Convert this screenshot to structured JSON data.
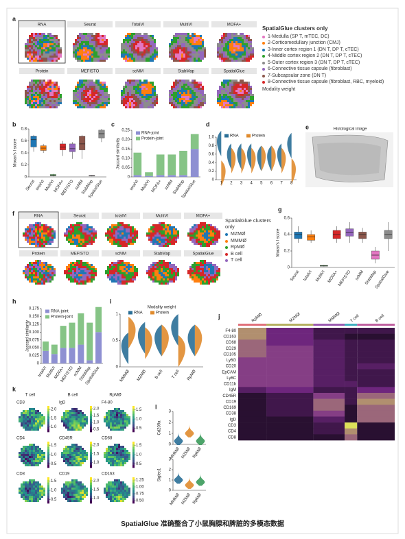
{
  "caption": "SpatialGlue 准确整合了小鼠胸腺和脾脏的多模态数据",
  "panels": {
    "a": {
      "label": "a",
      "maps": [
        "RNA",
        "Seurat",
        "TotalVI",
        "MultiVI",
        "MOFA+",
        "Protein",
        "MEFISTO",
        "scMM",
        "StabMap",
        "SpatialGlue"
      ],
      "legend_title": "SpatialGlue clusters only",
      "legend": [
        {
          "name": "1-Medulla (SP T, mTEC, DC)",
          "color": "#e377c2"
        },
        {
          "name": "2-Corticomedullary junction (CMJ)",
          "color": "#ff7f0e"
        },
        {
          "name": "3-Inner cortex region 1 (DN T, DP T, cTEC)",
          "color": "#1f77b4"
        },
        {
          "name": "4-Middle cortex region 2 (DN T, DP T, cTEC)",
          "color": "#2ca02c"
        },
        {
          "name": "5-Outer cortex region 3 (DN T, DP T, cTEC)",
          "color": "#8c8c8c"
        },
        {
          "name": "6-Connective tissue capsule (fibroblast)",
          "color": "#9467bd"
        },
        {
          "name": "7-Subcapsular zone (DN T)",
          "color": "#8c564b"
        },
        {
          "name": "8-Connective tissue capsule (fibroblast, RBC, myeloid)",
          "color": "#d62728"
        }
      ],
      "legend_footer": "Modality weight"
    },
    "b": {
      "label": "b",
      "chart_data": {
        "type": "box",
        "ylabel": "Moran's I score",
        "categories": [
          "Seurat",
          "totalVI",
          "MultiVI",
          "MOFA+",
          "MEFISTO",
          "scMM",
          "StabMap",
          "SpatialGlue"
        ],
        "colors": [
          "#1f77b4",
          "#ff7f0e",
          "#2ca02c",
          "#d62728",
          "#9467bd",
          "#8c564b",
          "#e377c2",
          "#8c8c8c"
        ],
        "min": [
          0.42,
          0.4,
          0.01,
          0.35,
          0.3,
          0.3,
          0.01,
          0.58
        ],
        "q1": [
          0.5,
          0.44,
          0.02,
          0.45,
          0.42,
          0.45,
          0.015,
          0.65
        ],
        "median": [
          0.62,
          0.48,
          0.03,
          0.5,
          0.47,
          0.55,
          0.02,
          0.72
        ],
        "q3": [
          0.68,
          0.52,
          0.04,
          0.55,
          0.55,
          0.68,
          0.025,
          0.78
        ],
        "max": [
          0.7,
          0.55,
          0.05,
          0.6,
          0.58,
          0.7,
          0.03,
          0.8
        ],
        "ylim": [
          0,
          0.8
        ],
        "yticks": [
          0,
          0.2,
          0.4,
          0.6,
          0.8
        ]
      }
    },
    "c": {
      "label": "c",
      "chart_data": {
        "type": "stacked_bar",
        "ylabel": "Jaccard similarity",
        "categories": [
          "totalVI",
          "MultiVI",
          "MOFA+",
          "scMM",
          "StabMap",
          "SpatialGlue"
        ],
        "series": [
          {
            "name": "RNA-joint",
            "color": "#8e90d2",
            "values": [
              0.01,
              0.005,
              0.01,
              0.01,
              0.01,
              0.15
            ]
          },
          {
            "name": "Protein-joint",
            "color": "#86c486",
            "values": [
              0.12,
              0.02,
              0.11,
              0.11,
              0.13,
              0.08
            ]
          }
        ],
        "ylim": [
          0,
          0.25
        ],
        "yticks": [
          0,
          0.05,
          {
            "value": 0.1,
            "label": "0.10"
          },
          0.15,
          {
            "value": 0.2,
            "label": "0.20"
          },
          0.25
        ]
      }
    },
    "d": {
      "label": "d",
      "chart_data": {
        "type": "violin",
        "categories": [
          "1",
          "2",
          "3",
          "4",
          "5",
          "6",
          "7",
          "8"
        ],
        "series": [
          {
            "name": "RNA",
            "color": "#2a6f97",
            "values": [
              0.85,
              0.55,
              0.55,
              0.55,
              0.5,
              0.5,
              0.55,
              0.8
            ]
          },
          {
            "name": "Protein",
            "color": "#e08b2d",
            "values": [
              0.15,
              0.45,
              0.45,
              0.45,
              0.5,
              0.5,
              0.45,
              0.2
            ]
          }
        ],
        "ylim": [
          0,
          1
        ],
        "yticks": [
          0,
          0.2,
          0.4,
          0.6,
          0.8,
          {
            "value": 1,
            "label": "1.0"
          }
        ]
      }
    },
    "e": {
      "label": "e",
      "title": "Histological image"
    },
    "f": {
      "label": "f",
      "maps": [
        "RNA",
        "Seurat",
        "totalVI",
        "MultiVI",
        "MOFA+",
        "Protein",
        "MEFISTO",
        "scMM",
        "StabMap",
        "SpatialGlue"
      ],
      "legend_title": "SpatialGlue clusters only",
      "legend": [
        {
          "name": "MZMØ",
          "color": "#1f77b4"
        },
        {
          "name": "MMMØ",
          "color": "#ff7f0e"
        },
        {
          "name": "RpMØ",
          "color": "#2ca02c"
        },
        {
          "name": "B cell",
          "color": "#d62728"
        },
        {
          "name": "T cell",
          "color": "#9467bd"
        }
      ]
    },
    "g": {
      "label": "g",
      "chart_data": {
        "type": "box",
        "ylabel": "Moran's I score",
        "categories": [
          "Seurat",
          "totalVI",
          "MultiVI",
          "MOFA+",
          "MEFISTO",
          "scMM",
          "StabMap",
          "SpatialGlue"
        ],
        "colors": [
          "#1f77b4",
          "#ff7f0e",
          "#2ca02c",
          "#d62728",
          "#9467bd",
          "#8c564b",
          "#e377c2",
          "#8c8c8c"
        ],
        "min": [
          0.3,
          0.3,
          0.01,
          0.3,
          0.3,
          0.3,
          0.05,
          0.2
        ],
        "q1": [
          0.35,
          0.33,
          0.015,
          0.35,
          0.38,
          0.35,
          0.1,
          0.35
        ],
        "median": [
          0.4,
          0.37,
          0.02,
          0.4,
          0.42,
          0.4,
          0.15,
          0.4
        ],
        "q3": [
          0.43,
          0.4,
          0.025,
          0.45,
          0.47,
          0.43,
          0.2,
          0.45
        ],
        "max": [
          0.5,
          0.45,
          0.03,
          0.5,
          0.55,
          0.48,
          0.25,
          0.55
        ],
        "ylim": [
          0,
          0.6
        ],
        "yticks": [
          0,
          0.2,
          0.4,
          0.6
        ]
      }
    },
    "h": {
      "label": "h",
      "chart_data": {
        "type": "stacked_bar",
        "ylabel": "Jaccard similarity",
        "categories": [
          "totalVI",
          "MultiVI",
          "MOFA+",
          "MEFISTO",
          "scMM",
          "StabMap",
          "SpatialGlue"
        ],
        "series": [
          {
            "name": "RNA-joint",
            "color": "#8e90d2",
            "values": [
              0.04,
              0.03,
              0.05,
              0.05,
              0.06,
              0.01,
              0.1
            ]
          },
          {
            "name": "Protein-joint",
            "color": "#86c486",
            "values": [
              0.03,
              0.03,
              0.07,
              0.08,
              0.1,
              0.12,
              0.08
            ]
          }
        ],
        "ylim": [
          0,
          0.175
        ],
        "yticks": [
          0,
          0.025,
          {
            "value": 0.05,
            "label": "0.050"
          },
          0.075,
          {
            "value": 0.1,
            "label": "0.100"
          },
          0.125,
          {
            "value": 0.15,
            "label": "0.150"
          },
          0.175
        ]
      }
    },
    "i": {
      "label": "i",
      "chart_data": {
        "type": "violin",
        "title": "Modality weight",
        "categories": [
          "MMMØ",
          "MZMØ",
          "B cell",
          "T cell",
          "RpMØ"
        ],
        "series": [
          {
            "name": "RNA",
            "color": "#2a6f97",
            "values": [
              0.35,
              0.55,
              0.5,
              0.7,
              0.5
            ]
          },
          {
            "name": "Protein",
            "color": "#e08b2d",
            "values": [
              0.65,
              0.45,
              0.5,
              0.3,
              0.5
            ]
          }
        ],
        "ylim": [
          0,
          1
        ],
        "yticks": [
          0,
          0.5,
          1
        ]
      }
    },
    "j": {
      "label": "j",
      "chart_data": {
        "type": "heatmap",
        "groups": [
          "RpMØ",
          "MZMØ",
          "MMMØ",
          "T cell",
          "B cell"
        ],
        "group_colors": [
          "#e0707a",
          "#b5b060",
          "#9a5ab0",
          "#40b0c0",
          "#c060a0"
        ],
        "rows": [
          "F4-80",
          "CD163",
          "CD68",
          "CD29",
          "CD105",
          "Ly6G",
          "CD20",
          "EpCAM",
          "Ly6C",
          "CD11b",
          "IgM",
          "CD45R",
          "CD19",
          "CD169",
          "CD38",
          "IgD",
          "CD3",
          "CD4",
          "CD8"
        ],
        "values": [
          [
            0.7,
            0.4,
            0.2,
            0.2,
            0.2
          ],
          [
            0.7,
            0.4,
            0.2,
            0.1,
            0.1
          ],
          [
            0.6,
            0.4,
            0.3,
            0.2,
            0.2
          ],
          [
            0.6,
            0.5,
            0.3,
            0.2,
            0.2
          ],
          [
            0.6,
            0.5,
            0.3,
            0.2,
            0.2
          ],
          [
            0.5,
            0.5,
            0.3,
            0.2,
            0.2
          ],
          [
            0.5,
            0.5,
            0.3,
            0.2,
            0.3
          ],
          [
            0.5,
            0.5,
            0.3,
            0.2,
            0.2
          ],
          [
            0.5,
            0.5,
            0.3,
            0.2,
            0.2
          ],
          [
            0.5,
            0.5,
            0.3,
            0.3,
            0.2
          ],
          [
            0.3,
            0.4,
            0.2,
            0.2,
            0.4
          ],
          [
            0.1,
            0.2,
            0.5,
            0.2,
            0.6
          ],
          [
            0.1,
            0.2,
            0.6,
            0.2,
            0.7
          ],
          [
            0.1,
            0.2,
            0.6,
            0.1,
            0.6
          ],
          [
            0.1,
            0.2,
            0.5,
            0.1,
            0.6
          ],
          [
            0.1,
            0.1,
            0.3,
            0.1,
            0.6
          ],
          [
            0.1,
            0.1,
            0.2,
            0.9,
            0.1
          ],
          [
            0.1,
            0.1,
            0.2,
            0.7,
            0.1
          ],
          [
            0.1,
            0.1,
            0.1,
            0.6,
            0.1
          ]
        ]
      }
    },
    "k": {
      "label": "k",
      "columns": [
        "T cell",
        "B cell",
        "RpMØ"
      ],
      "maps": [
        {
          "title": "CD3",
          "clim": [
            0.7,
            2.2
          ],
          "ticks": [
            {
              "value": 1,
              "label": "1.0"
            },
            1.5,
            {
              "value": 2,
              "label": "2.0"
            }
          ]
        },
        {
          "title": "IgD",
          "clim": [
            0.3,
            2.2
          ],
          "ticks": [
            0.5,
            {
              "value": 1,
              "label": "1.0"
            },
            1.5,
            {
              "value": 2,
              "label": "2.0"
            }
          ]
        },
        {
          "title": "F4-80",
          "clim": [
            0.3,
            1.7
          ],
          "ticks": [
            0.5,
            {
              "value": 1,
              "label": "1.0"
            },
            1.5
          ]
        },
        {
          "title": "CD4",
          "clim": [
            0.3,
            1.7
          ],
          "ticks": [
            0.5,
            {
              "value": 1,
              "label": "1.0"
            },
            1.5
          ]
        },
        {
          "title": "CD45R",
          "clim": [
            0.7,
            2.2
          ],
          "ticks": [
            {
              "value": 1,
              "label": "1.0"
            },
            1.5,
            {
              "value": 2,
              "label": "2.0"
            }
          ]
        },
        {
          "title": "CD68",
          "clim": [
            0.3,
            1.7
          ],
          "ticks": [
            0.5,
            {
              "value": 1,
              "label": "1.0"
            },
            1.5
          ]
        },
        {
          "title": "CD8",
          "clim": [
            0.3,
            1.7
          ],
          "ticks": [
            0.5,
            {
              "value": 1,
              "label": "1.0"
            },
            1.5
          ]
        },
        {
          "title": "CD19",
          "clim": [
            0.7,
            2.2
          ],
          "ticks": [
            {
              "value": 1,
              "label": "1.0"
            },
            1.5,
            {
              "value": 2,
              "label": "2.0"
            }
          ]
        },
        {
          "title": "CD163",
          "clim": [
            0.4,
            1.35
          ],
          "ticks": [
            {
              "value": 0.5,
              "label": "0.50"
            },
            0.75,
            {
              "value": 1,
              "label": "1.00"
            },
            1.25
          ]
        }
      ]
    },
    "l": {
      "label": "l",
      "charts": [
        {
          "type": "violin_single",
          "ylabel": "Cd209a",
          "categories": [
            "MMMØ",
            "MZMØ",
            "RpMØ"
          ],
          "colors": [
            "#2a6f97",
            "#e08b2d",
            "#3a9a5a"
          ],
          "values": [
            0.3,
            1,
            0.3
          ],
          "ylim": [
            0,
            3
          ],
          "yticks": [
            0,
            1,
            2,
            3
          ]
        },
        {
          "type": "violin_single",
          "ylabel": "Siglec1",
          "categories": [
            "MMMØ",
            "MZMØ",
            "RpMØ"
          ],
          "colors": [
            "#2a6f97",
            "#e08b2d",
            "#3a9a5a"
          ],
          "values": [
            1,
            0.5,
            0.8
          ],
          "ylim": [
            0,
            3
          ],
          "yticks": [
            0,
            1,
            2,
            3
          ]
        }
      ]
    }
  }
}
